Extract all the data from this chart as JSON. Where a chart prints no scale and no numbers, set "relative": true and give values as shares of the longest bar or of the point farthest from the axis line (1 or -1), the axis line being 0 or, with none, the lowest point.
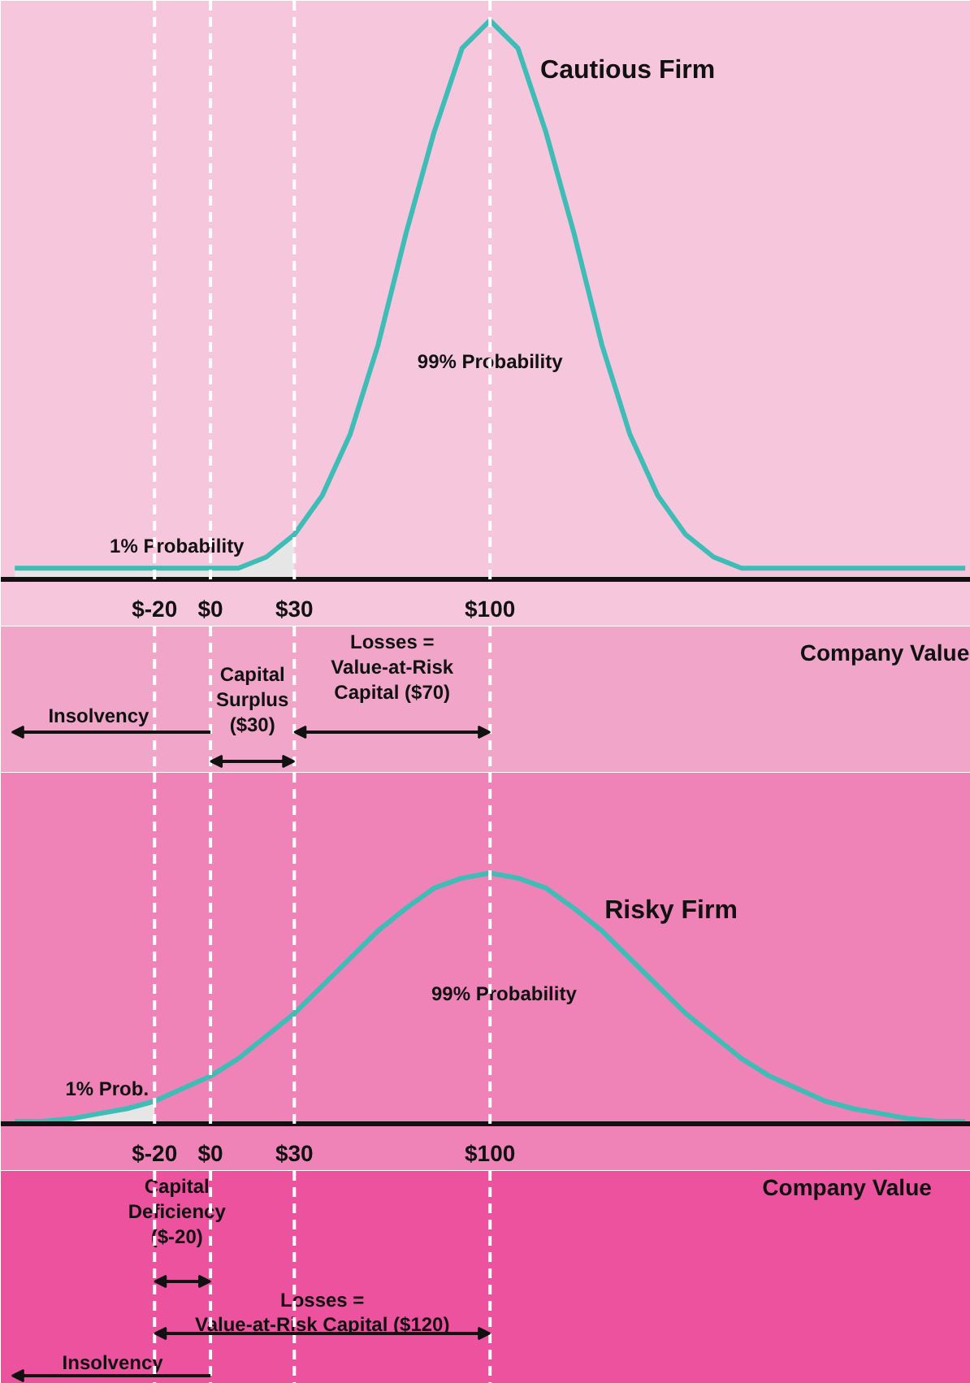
{
  "chart_data": [
    {
      "type": "line",
      "title": "Cautious Firm",
      "xlabel": "Company Value",
      "relative": true,
      "xlim": [
        -75,
        272
      ],
      "xticks": [
        {
          "value": -20,
          "label": "$-20"
        },
        {
          "value": 0,
          "label": "$0"
        },
        {
          "value": 30,
          "label": "$30"
        },
        {
          "value": 100,
          "label": "$100"
        }
      ],
      "x": [
        -70,
        -60,
        -50,
        -40,
        -30,
        -20,
        -10,
        0,
        10,
        20,
        30,
        40,
        50,
        60,
        70,
        80,
        90,
        100,
        110,
        120,
        130,
        140,
        150,
        160,
        170,
        180,
        190,
        200,
        210,
        220,
        230,
        240,
        250,
        260,
        270
      ],
      "series": [
        {
          "color": "#3dbdb5",
          "values": [
            0.02,
            0.02,
            0.02,
            0.02,
            0.02,
            0.02,
            0.02,
            0.02,
            0.02,
            0.04,
            0.08,
            0.15,
            0.26,
            0.42,
            0.62,
            0.8,
            0.95,
            1,
            0.95,
            0.8,
            0.62,
            0.42,
            0.26,
            0.15,
            0.08,
            0.04,
            0.02,
            0.02,
            0.02,
            0.02,
            0.02,
            0.02,
            0.02,
            0.02,
            0.02
          ]
        },
        {
          "type": "area",
          "color": "#e6e6e6",
          "x": [
            -70,
            -60,
            -50,
            -40,
            -30,
            -20,
            -10,
            0,
            10,
            20,
            30
          ],
          "values": [
            0.02,
            0.02,
            0.02,
            0.02,
            0.02,
            0.02,
            0.02,
            0.02,
            0.02,
            0.04,
            0.08
          ]
        }
      ],
      "ref_lines": [
        {
          "axis": "x",
          "value": -20,
          "color": "#ffffff",
          "line_style": "dashed"
        },
        {
          "axis": "x",
          "value": 0,
          "color": "#ffffff",
          "line_style": "dashed"
        },
        {
          "axis": "x",
          "value": 30,
          "color": "#ffffff",
          "line_style": "dashed"
        },
        {
          "axis": "x",
          "value": 100,
          "color": "#ffffff",
          "line_style": "dashed"
        }
      ],
      "annotations": [
        "99% Probability",
        "1% Probability",
        "Insolvency",
        "Capital\nSurplus\n($30)",
        "Losses =\nValue-at-Risk\nCapital ($70)"
      ]
    },
    {
      "type": "line",
      "title": "Risky Firm",
      "xlabel": "Company Value",
      "relative": true,
      "xlim": [
        -75,
        272
      ],
      "xticks": [
        {
          "value": -20,
          "label": "$-20"
        },
        {
          "value": 0,
          "label": "$0"
        },
        {
          "value": 30,
          "label": "$30"
        },
        {
          "value": 100,
          "label": "$100"
        }
      ],
      "x": [
        -70,
        -60,
        -50,
        -40,
        -30,
        -20,
        -10,
        0,
        10,
        20,
        30,
        40,
        50,
        60,
        70,
        80,
        90,
        100,
        110,
        120,
        130,
        140,
        150,
        160,
        170,
        180,
        190,
        200,
        210,
        220,
        230,
        240,
        250,
        260,
        270
      ],
      "series": [
        {
          "color": "#3dbdb5",
          "values": [
            0.01,
            0.01,
            0.02,
            0.04,
            0.06,
            0.09,
            0.14,
            0.19,
            0.26,
            0.35,
            0.44,
            0.55,
            0.66,
            0.77,
            0.86,
            0.94,
            0.98,
            1,
            0.98,
            0.94,
            0.86,
            0.77,
            0.66,
            0.55,
            0.44,
            0.35,
            0.26,
            0.19,
            0.14,
            0.09,
            0.06,
            0.04,
            0.02,
            0.01,
            0.01
          ]
        },
        {
          "type": "area",
          "color": "#e6e6e6",
          "x": [
            -70,
            -60,
            -50,
            -40,
            -30,
            -20
          ],
          "values": [
            0.01,
            0.01,
            0.02,
            0.04,
            0.06,
            0.09
          ]
        }
      ],
      "ref_lines": [
        {
          "axis": "x",
          "value": -20,
          "color": "#ffffff",
          "line_style": "dashed"
        },
        {
          "axis": "x",
          "value": 0,
          "color": "#ffffff",
          "line_style": "dashed"
        },
        {
          "axis": "x",
          "value": 30,
          "color": "#ffffff",
          "line_style": "dashed"
        },
        {
          "axis": "x",
          "value": 100,
          "color": "#ffffff",
          "line_style": "dashed"
        }
      ],
      "annotations": [
        "99% Probability",
        "1% Prob.",
        "Capital\nDeficiency\n($-20)",
        "Losses =\nValue-at-Risk Capital ($120)",
        "Insolvency"
      ]
    }
  ]
}
